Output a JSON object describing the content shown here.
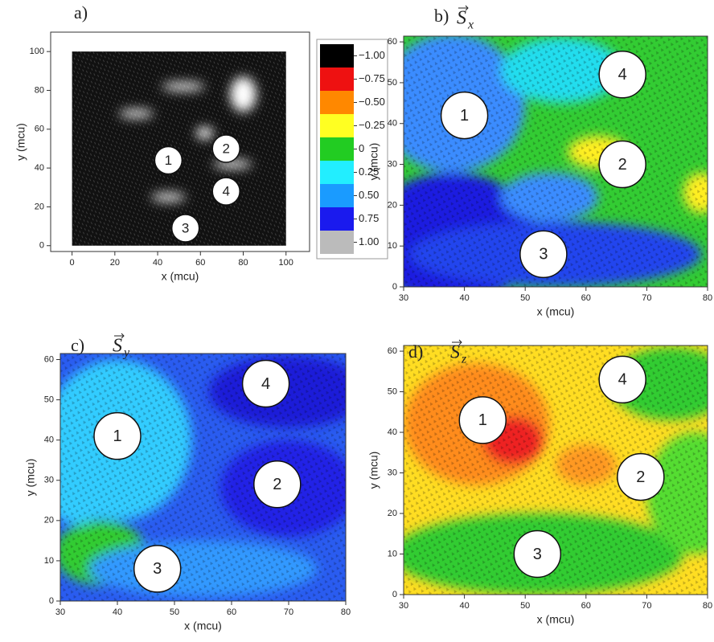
{
  "chart_data": [
    {
      "type": "field",
      "panel_label": "a)",
      "x_label": "x (mcu)",
      "y_label": "y (mcu)",
      "xlim": [
        -10,
        111
      ],
      "ylim": [
        -3,
        110
      ],
      "xticks": [
        0,
        20,
        40,
        60,
        80,
        100
      ],
      "yticks": [
        0,
        20,
        40,
        60,
        80,
        100
      ],
      "field_extent": {
        "x": [
          0,
          100
        ],
        "y": [
          0,
          100
        ]
      },
      "background": "#111111",
      "regions": [
        {
          "x": 30,
          "y": 68,
          "rx": 8,
          "ry": 2,
          "color": "#ffffff"
        },
        {
          "x": 62,
          "y": 58,
          "rx": 4,
          "ry": 3,
          "color": "#ffffff"
        },
        {
          "x": 80,
          "y": 78,
          "rx": 6,
          "ry": 9,
          "color": "#ffffff"
        },
        {
          "x": 52,
          "y": 82,
          "rx": 10,
          "ry": 2,
          "color": "#ffffff"
        },
        {
          "x": 45,
          "y": 25,
          "rx": 8,
          "ry": 2,
          "color": "#ffffff"
        },
        {
          "x": 75,
          "y": 42,
          "rx": 9,
          "ry": 2,
          "color": "#ffffff"
        }
      ],
      "annotations": [
        {
          "text": "1",
          "x": 45,
          "y": 44
        },
        {
          "text": "2",
          "x": 72,
          "y": 50
        },
        {
          "text": "3",
          "x": 53,
          "y": 9
        },
        {
          "text": "4",
          "x": 72,
          "y": 28
        }
      ],
      "colorbar": {
        "ticks": [
          {
            "value": -1,
            "label": "−1.00"
          },
          {
            "value": -0.75,
            "label": "−0.75"
          },
          {
            "value": -0.5,
            "label": "−0.50"
          },
          {
            "value": -0.25,
            "label": "−0.25"
          },
          0,
          0.25,
          {
            "value": 0.5,
            "label": "0.50"
          },
          0.75,
          {
            "value": 1,
            "label": "1.00"
          }
        ],
        "colors": [
          "#000000",
          "#ee1111",
          "#ff8800",
          "#ffff22",
          "#22cc22",
          "#22eeff",
          "#1a9bff",
          "#1a1aee",
          "#bbbbbb"
        ]
      }
    },
    {
      "type": "field",
      "panel_label": "b)",
      "title": "S",
      "title_subscript": "x",
      "x_label": "x (mcu)",
      "y_label": "y (mcu)",
      "xlim": [
        30,
        80
      ],
      "ylim": [
        0,
        61.4
      ],
      "xticks": [
        30,
        40,
        50,
        60,
        70,
        80
      ],
      "yticks": [
        0,
        10,
        20,
        30,
        40,
        50,
        60
      ],
      "field_extent": {
        "x": [
          30,
          80
        ],
        "y": [
          0,
          61.4
        ]
      },
      "background": "#33cc33",
      "regions": [
        {
          "x": 38,
          "y": 45,
          "rx": 12,
          "ry": 17,
          "color": "#3a8cff"
        },
        {
          "x": 56,
          "y": 53,
          "rx": 10,
          "ry": 8,
          "color": "#22ddee"
        },
        {
          "x": 38,
          "y": 12,
          "rx": 14,
          "ry": 16,
          "color": "#1a1ae0"
        },
        {
          "x": 55,
          "y": 8,
          "rx": 24,
          "ry": 8,
          "color": "#2244ee"
        },
        {
          "x": 54,
          "y": 22,
          "rx": 8,
          "ry": 6,
          "color": "#3a8cff"
        },
        {
          "x": 62,
          "y": 33,
          "rx": 5,
          "ry": 4,
          "color": "#ffee22"
        },
        {
          "x": 79,
          "y": 23,
          "rx": 3,
          "ry": 5,
          "color": "#ffee22"
        }
      ],
      "annotations": [
        {
          "text": "1",
          "x": 40,
          "y": 42
        },
        {
          "text": "2",
          "x": 66,
          "y": 30
        },
        {
          "text": "3",
          "x": 53,
          "y": 8
        },
        {
          "text": "4",
          "x": 66,
          "y": 52
        }
      ]
    },
    {
      "type": "field",
      "panel_label": "c)",
      "title": "S",
      "title_subscript": "y",
      "x_label": "x (mcu)",
      "y_label": "y (mcu)",
      "xlim": [
        30,
        80
      ],
      "ylim": [
        0,
        61.5
      ],
      "xticks": [
        30,
        40,
        50,
        60,
        70,
        80
      ],
      "yticks": [
        0,
        10,
        20,
        30,
        40,
        50,
        60
      ],
      "field_extent": {
        "x": [
          30,
          80
        ],
        "y": [
          0,
          61.5
        ]
      },
      "background": "#2a5cf0",
      "regions": [
        {
          "x": 40,
          "y": 40,
          "rx": 13,
          "ry": 20,
          "color": "#33ccff"
        },
        {
          "x": 70,
          "y": 52,
          "rx": 14,
          "ry": 9,
          "color": "#1e1ed8"
        },
        {
          "x": 70,
          "y": 28,
          "rx": 12,
          "ry": 12,
          "color": "#2222e6"
        },
        {
          "x": 37,
          "y": 12,
          "rx": 8,
          "ry": 8,
          "color": "#33cc33"
        },
        {
          "x": 55,
          "y": 8,
          "rx": 20,
          "ry": 7,
          "color": "#3399ff"
        },
        {
          "x": 33,
          "y": 25,
          "rx": 5,
          "ry": 6,
          "color": "#33ccff"
        }
      ],
      "annotations": [
        {
          "text": "1",
          "x": 40,
          "y": 41
        },
        {
          "text": "2",
          "x": 68,
          "y": 29
        },
        {
          "text": "3",
          "x": 47,
          "y": 8
        },
        {
          "text": "4",
          "x": 66,
          "y": 54
        }
      ]
    },
    {
      "type": "field",
      "panel_label": "d)",
      "title": "S",
      "title_subscript": "z",
      "x_label": "x (mcu)",
      "y_label": "y (mcu)",
      "xlim": [
        30,
        80
      ],
      "ylim": [
        0,
        61.4
      ],
      "xticks": [
        30,
        40,
        50,
        60,
        70,
        80
      ],
      "yticks": [
        0,
        10,
        20,
        30,
        40,
        50,
        60
      ],
      "field_extent": {
        "x": [
          30,
          80
        ],
        "y": [
          0,
          61.4
        ]
      },
      "background": "#ffdd22",
      "regions": [
        {
          "x": 42,
          "y": 42,
          "rx": 12,
          "ry": 15,
          "color": "#ff8c1a"
        },
        {
          "x": 48,
          "y": 38,
          "rx": 5,
          "ry": 6,
          "color": "#ee2222"
        },
        {
          "x": 74,
          "y": 52,
          "rx": 10,
          "ry": 9,
          "color": "#33cc33"
        },
        {
          "x": 52,
          "y": 10,
          "rx": 24,
          "ry": 10,
          "color": "#33cc33"
        },
        {
          "x": 78,
          "y": 25,
          "rx": 8,
          "ry": 15,
          "color": "#55dd33"
        },
        {
          "x": 60,
          "y": 32,
          "rx": 5,
          "ry": 5,
          "color": "#ff9922"
        }
      ],
      "annotations": [
        {
          "text": "1",
          "x": 43,
          "y": 43
        },
        {
          "text": "2",
          "x": 69,
          "y": 29
        },
        {
          "text": "3",
          "x": 52,
          "y": 10
        },
        {
          "text": "4",
          "x": 66,
          "y": 53
        }
      ]
    }
  ]
}
